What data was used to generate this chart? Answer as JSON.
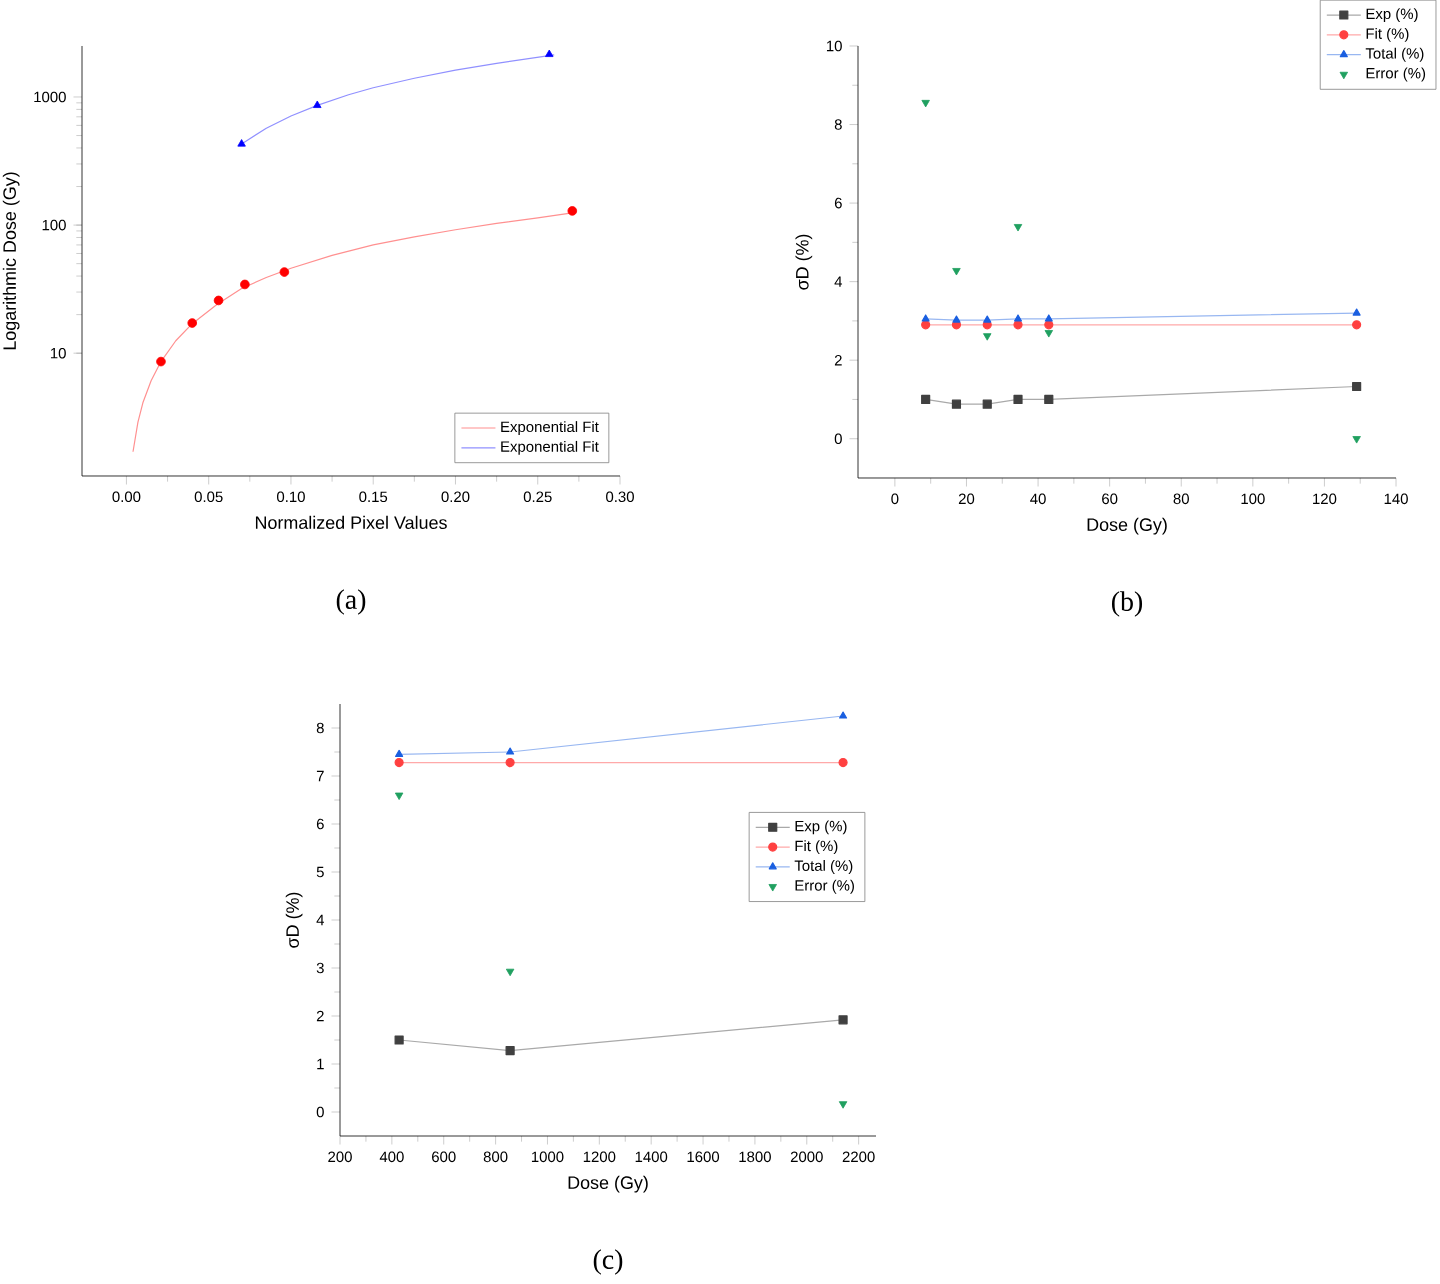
{
  "chart_data": [
    {
      "type": "scatter",
      "xlabel": "Normalized Pixel Values",
      "ylabel": "Logarithmic Dose (Gy)",
      "annotations": [
        "(a)"
      ],
      "log": "y",
      "legend": "bottom right",
      "xlim": [
        -0.027,
        0.3
      ],
      "ylim": [
        1.1,
        2500
      ],
      "xticks": [
        {
          "value": 0,
          "label": "0.00"
        },
        {
          "value": 0.05,
          "label": "0.05"
        },
        {
          "value": 0.1,
          "label": "0.10"
        },
        {
          "value": 0.15,
          "label": "0.15"
        },
        {
          "value": 0.2,
          "label": "0.20"
        },
        {
          "value": 0.25,
          "label": "0.25"
        },
        {
          "value": 0.3,
          "label": "0.30"
        }
      ],
      "yticks": [
        10,
        100,
        1000
      ],
      "series": [
        {
          "marker": "circle",
          "color": "#ff0000",
          "x": [
            0.021,
            0.04,
            0.056,
            0.072,
            0.096,
            0.271
          ],
          "values": [
            8.6,
            17.2,
            25.8,
            34.4,
            43,
            129
          ]
        },
        {
          "marker": "triangle",
          "color": "#0000ff",
          "x": [
            0.07,
            0.116,
            0.257
          ],
          "values": [
            430,
            860,
            2150
          ]
        },
        {
          "type": "line",
          "marker": "none",
          "name": "Exponential Fit",
          "color": "#ff9090",
          "x": [
            0.004,
            0.007,
            0.01,
            0.015,
            0.021,
            0.03,
            0.04,
            0.055,
            0.07,
            0.085,
            0.1,
            0.125,
            0.15,
            0.175,
            0.2,
            0.225,
            0.25,
            0.272
          ],
          "values": [
            1.7,
            2.9,
            4.1,
            6.1,
            8.6,
            12.5,
            17,
            24,
            32,
            39,
            46,
            58,
            70,
            81,
            92,
            103,
            114,
            125
          ]
        },
        {
          "type": "line",
          "marker": "none",
          "name": "Exponential Fit",
          "color": "#9090ff",
          "x": [
            0.07,
            0.085,
            0.1,
            0.116,
            0.135,
            0.15,
            0.175,
            0.2,
            0.225,
            0.26
          ],
          "values": [
            430,
            570,
            710,
            860,
            1040,
            1180,
            1400,
            1620,
            1830,
            2130
          ]
        }
      ]
    },
    {
      "type": "line",
      "xlabel": "Dose (Gy)",
      "ylabel": "σD (%)",
      "annotations": [
        "(b)"
      ],
      "legend": "top right",
      "xlim": [
        -10.3,
        140
      ],
      "ylim": [
        -1,
        10
      ],
      "xticks": [
        0,
        20,
        40,
        60,
        80,
        100,
        120,
        140
      ],
      "yticks": [
        0,
        2,
        4,
        6,
        8,
        10
      ],
      "series": [
        {
          "marker": "square",
          "name": "Exp (%)",
          "color": "#404040",
          "x": [
            8.6,
            17.2,
            25.8,
            34.4,
            43,
            129
          ],
          "values": [
            1.0,
            0.88,
            0.88,
            1.0,
            1.0,
            1.33
          ]
        },
        {
          "marker": "circle",
          "name": "Fit (%)",
          "color": "#ff4040",
          "x": [
            8.6,
            17.2,
            25.8,
            34.4,
            43,
            129
          ],
          "values": [
            2.9,
            2.9,
            2.9,
            2.9,
            2.9,
            2.9
          ]
        },
        {
          "marker": "triangle",
          "name": "Total (%)",
          "color": "#1a5fe0",
          "x": [
            8.6,
            17.2,
            25.8,
            34.4,
            43,
            129
          ],
          "values": [
            3.05,
            3.02,
            3.02,
            3.05,
            3.05,
            3.2
          ]
        },
        {
          "type": "scatter",
          "marker": "triangle-down",
          "name": "Error (%)",
          "color": "#20a060",
          "x": [
            8.6,
            17.2,
            25.8,
            34.4,
            43,
            129
          ],
          "values": [
            8.56,
            4.28,
            2.62,
            5.4,
            2.7,
            0
          ]
        }
      ]
    },
    {
      "type": "line",
      "xlabel": "Dose (Gy)",
      "ylabel": "σD (%)",
      "annotations": [
        "(c)"
      ],
      "legend": "right",
      "xlim": [
        200,
        2267
      ],
      "ylim": [
        -0.5,
        8.5
      ],
      "xticks": [
        200,
        400,
        600,
        800,
        1000,
        1200,
        1400,
        1600,
        1800,
        2000,
        2200
      ],
      "yticks": [
        0,
        1,
        2,
        3,
        4,
        5,
        6,
        7,
        8
      ],
      "series": [
        {
          "marker": "square",
          "name": "Exp (%)",
          "color": "#404040",
          "x": [
            428,
            856,
            2140
          ],
          "values": [
            1.5,
            1.28,
            1.92
          ]
        },
        {
          "marker": "circle",
          "name": "Fit (%)",
          "color": "#ff4040",
          "x": [
            428,
            856,
            2140
          ],
          "values": [
            7.28,
            7.28,
            7.28
          ]
        },
        {
          "marker": "triangle",
          "name": "Total (%)",
          "color": "#1a5fe0",
          "x": [
            428,
            856,
            2140
          ],
          "values": [
            7.45,
            7.5,
            8.25
          ]
        },
        {
          "type": "scatter",
          "marker": "triangle-down",
          "name": "Error (%)",
          "color": "#20a060",
          "x": [
            428,
            856,
            2140
          ],
          "values": [
            6.6,
            2.93,
            0.17
          ]
        }
      ]
    }
  ]
}
